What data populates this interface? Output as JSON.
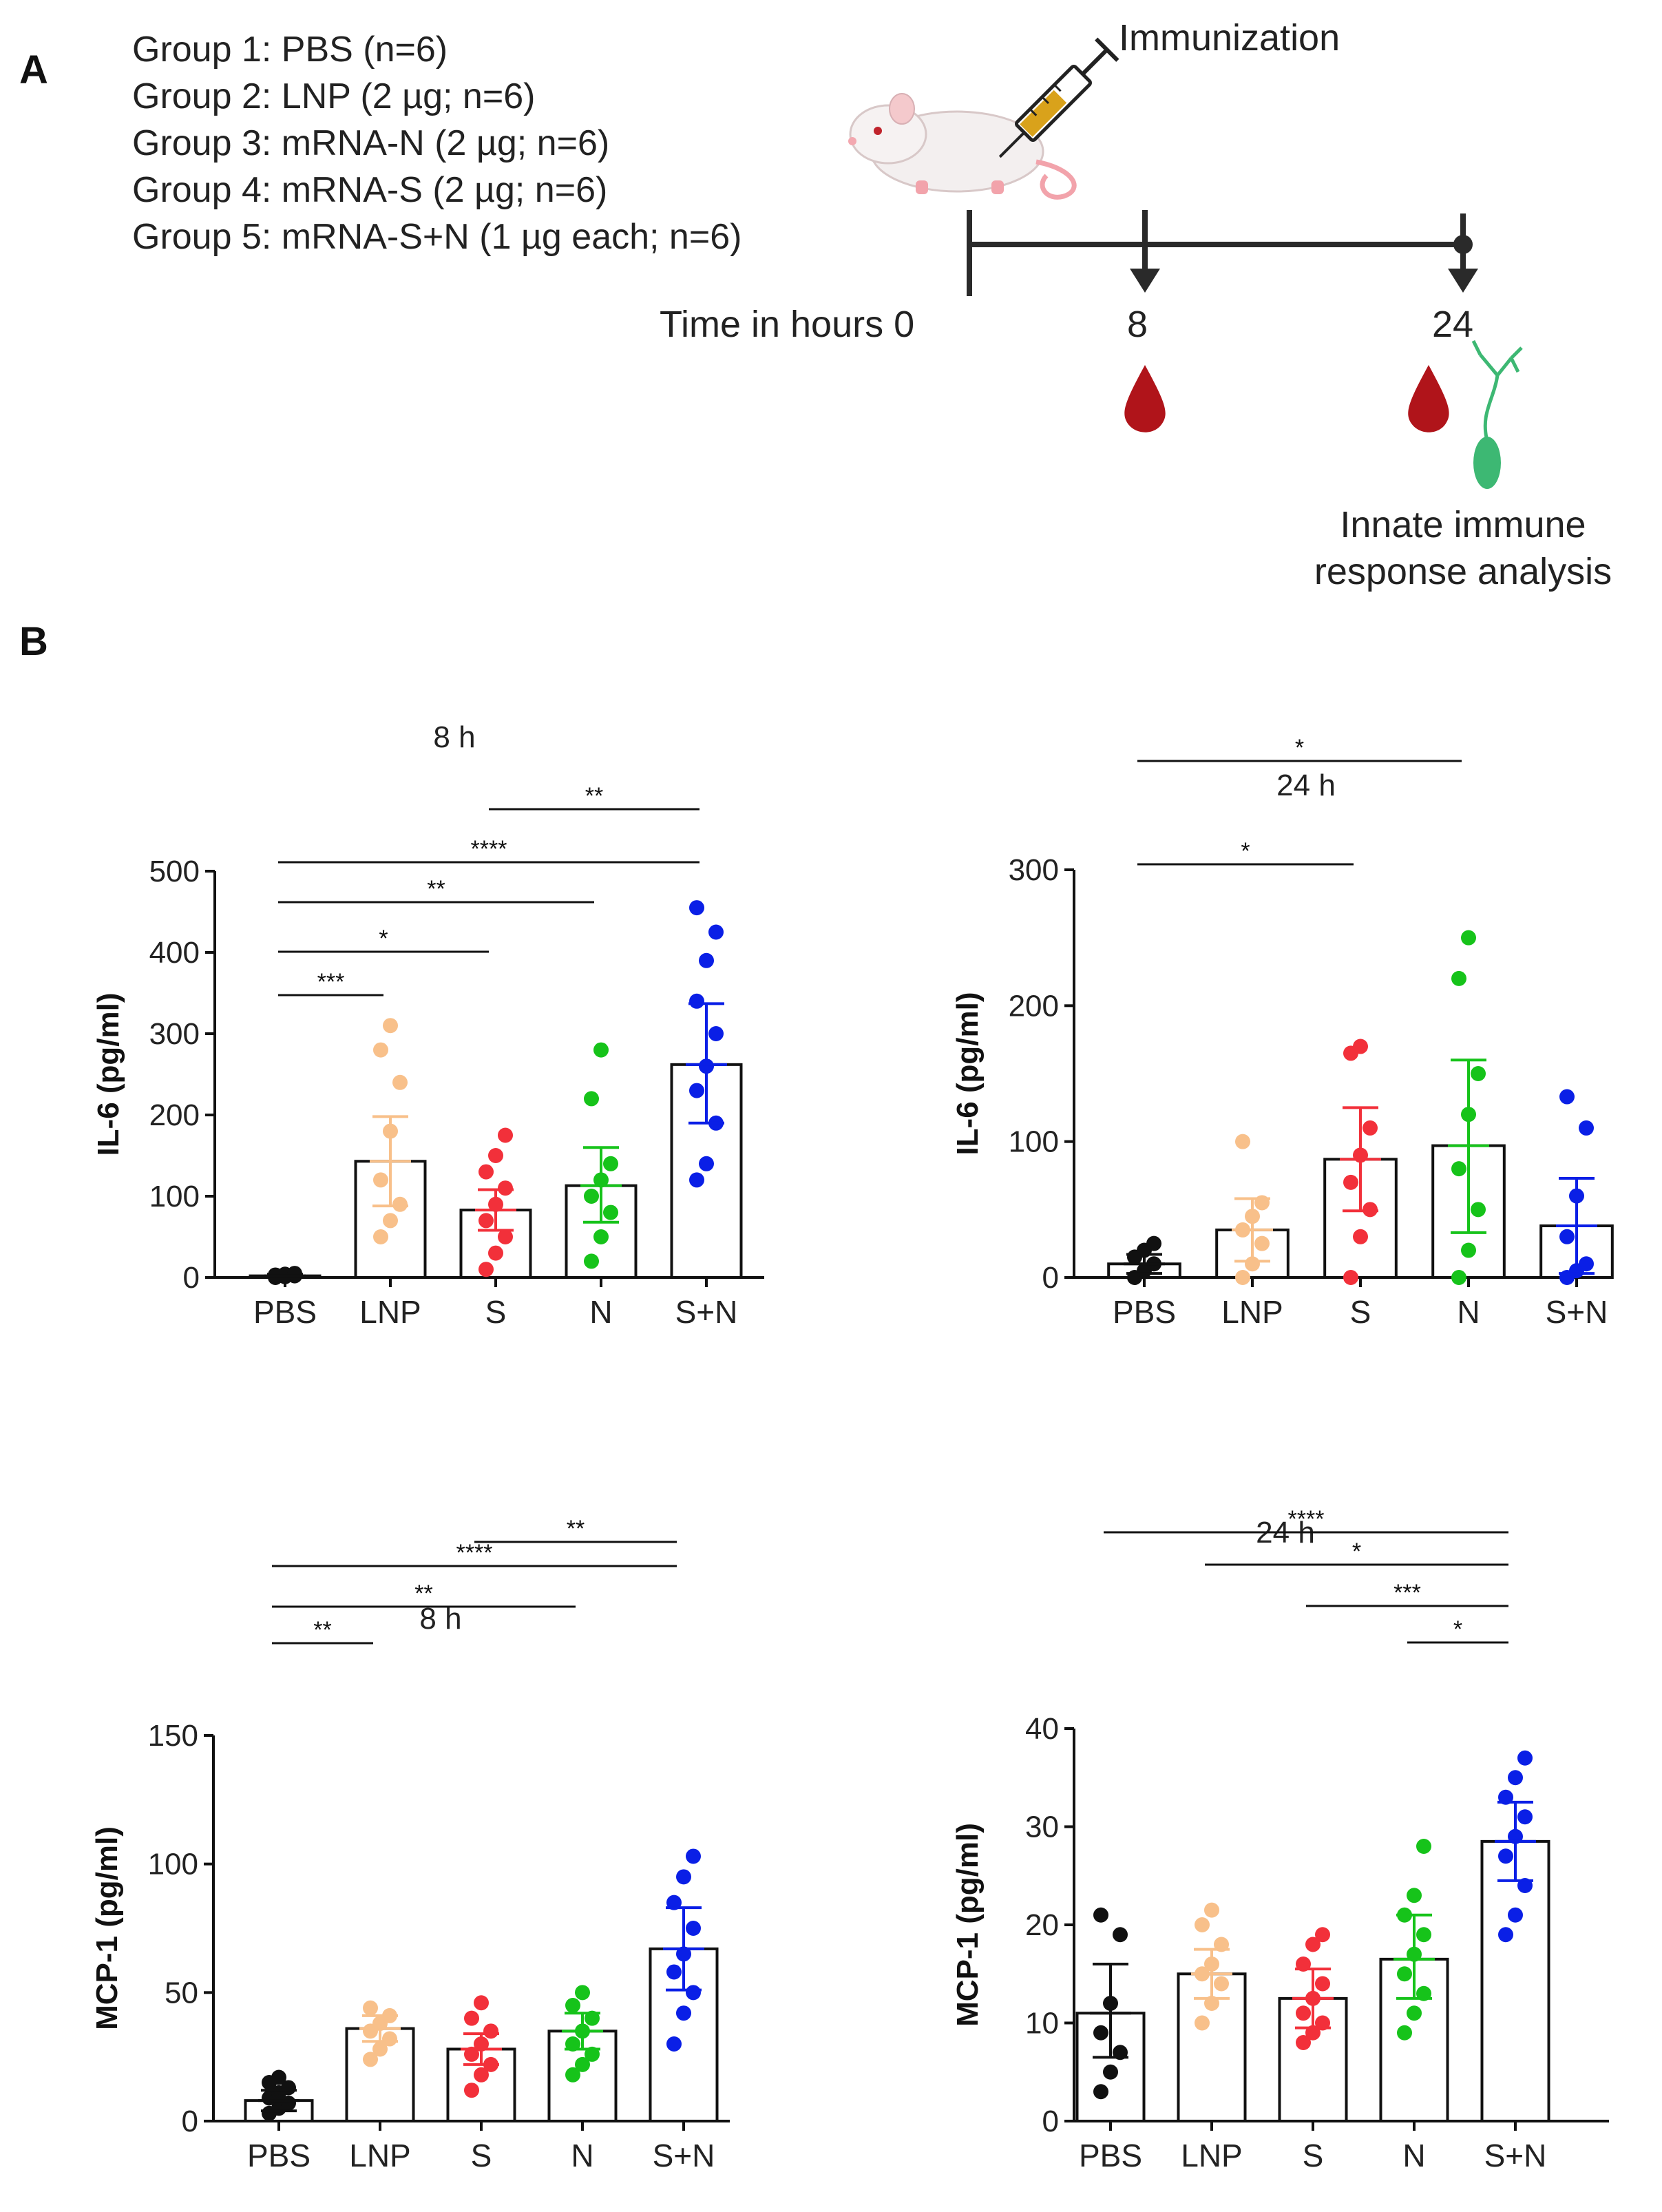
{
  "panels": {
    "a": "A",
    "b": "B"
  },
  "groups": [
    "Group 1: PBS  (n=6)",
    "Group 2: LNP  (2 µg; n=6)",
    "Group 3: mRNA-N (2 µg; n=6)",
    "Group 4: mRNA-S  (2 µg; n=6)",
    "Group 5: mRNA-S+N (1 µg each; n=6)"
  ],
  "timeline": {
    "immunization": "Immunization",
    "time_label": "Time in hours 0",
    "t8": "8",
    "t24": "24",
    "analysis_line1": "Innate immune",
    "analysis_line2": "response analysis"
  },
  "colors": {
    "PBS": "#111111",
    "LNP": "#f8c08a",
    "S": "#f2303a",
    "N": "#16c31a",
    "S+N": "#0a1fe6",
    "blood": "#b0141a",
    "neuron": "#3db873",
    "syringe": "#d9a21b"
  },
  "chart_data": [
    {
      "id": "il6_8h",
      "type": "bar",
      "title": "8 h",
      "ylabel": "IL-6 (pg/ml)",
      "categories": [
        "PBS",
        "LNP",
        "S",
        "N",
        "S+N"
      ],
      "ylim": [
        0,
        500
      ],
      "yticks": [
        0,
        100,
        200,
        300,
        400,
        500
      ],
      "means": [
        2,
        143,
        83,
        113,
        262
      ],
      "err_high": [
        4,
        198,
        108,
        160,
        337
      ],
      "err_low": [
        0,
        88,
        58,
        68,
        190
      ],
      "points": [
        [
          0,
          1,
          2,
          3,
          4,
          5
        ],
        [
          50,
          70,
          90,
          120,
          180,
          240,
          280,
          310
        ],
        [
          10,
          30,
          50,
          70,
          90,
          110,
          130,
          150,
          175
        ],
        [
          20,
          50,
          80,
          100,
          120,
          140,
          220,
          280
        ],
        [
          120,
          140,
          190,
          230,
          260,
          300,
          340,
          390,
          425,
          455
        ]
      ],
      "significance": [
        {
          "from": 0,
          "to": 1,
          "label": "***"
        },
        {
          "from": 0,
          "to": 2,
          "label": "*"
        },
        {
          "from": 0,
          "to": 3,
          "label": "**"
        },
        {
          "from": 0,
          "to": 4,
          "label": "****"
        },
        {
          "from": 2,
          "to": 4,
          "label": "**"
        }
      ]
    },
    {
      "id": "il6_24h",
      "type": "bar",
      "title": "24 h",
      "ylabel": "IL-6 (pg/ml)",
      "categories": [
        "PBS",
        "LNP",
        "S",
        "N",
        "S+N"
      ],
      "ylim": [
        0,
        300
      ],
      "yticks": [
        0,
        100,
        200,
        300
      ],
      "means": [
        10,
        35,
        87,
        97,
        38
      ],
      "err_high": [
        17,
        58,
        125,
        160,
        73
      ],
      "err_low": [
        3,
        12,
        49,
        33,
        3
      ],
      "points": [
        [
          0,
          5,
          10,
          15,
          20,
          25
        ],
        [
          0,
          10,
          25,
          35,
          45,
          55,
          100
        ],
        [
          0,
          30,
          50,
          70,
          90,
          110,
          165,
          170
        ],
        [
          0,
          20,
          50,
          80,
          120,
          150,
          220,
          250
        ],
        [
          0,
          5,
          10,
          30,
          60,
          110,
          133
        ]
      ],
      "significance": [
        {
          "from": 0,
          "to": 2,
          "label": "*"
        },
        {
          "from": 0,
          "to": 3,
          "label": "*"
        }
      ]
    },
    {
      "id": "mcp1_8h",
      "type": "bar",
      "title": "8 h",
      "ylabel": "MCP-1 (pg/ml)",
      "categories": [
        "PBS",
        "LNP",
        "S",
        "N",
        "S+N"
      ],
      "ylim": [
        0,
        150
      ],
      "yticks": [
        0,
        50,
        100,
        150
      ],
      "means": [
        8,
        36,
        28,
        35,
        67
      ],
      "err_high": [
        12,
        41,
        34,
        42,
        83
      ],
      "err_low": [
        4,
        31,
        22,
        28,
        51
      ],
      "points": [
        [
          3,
          5,
          7,
          9,
          11,
          13,
          15,
          17
        ],
        [
          24,
          28,
          32,
          35,
          38,
          41,
          44
        ],
        [
          12,
          18,
          22,
          26,
          30,
          35,
          40,
          46
        ],
        [
          18,
          22,
          26,
          30,
          35,
          40,
          45,
          50
        ],
        [
          30,
          42,
          50,
          58,
          65,
          75,
          85,
          95,
          103
        ]
      ],
      "significance": [
        {
          "from": 0,
          "to": 1,
          "label": "**"
        },
        {
          "from": 0,
          "to": 3,
          "label": "**"
        },
        {
          "from": 0,
          "to": 4,
          "label": "****"
        },
        {
          "from": 2,
          "to": 4,
          "label": "**"
        }
      ]
    },
    {
      "id": "mcp1_24h",
      "type": "bar",
      "title": "24 h",
      "ylabel": "MCP-1 (pg/ml)",
      "categories": [
        "PBS",
        "LNP",
        "S",
        "N",
        "S+N"
      ],
      "ylim": [
        0,
        40
      ],
      "yticks": [
        0,
        10,
        20,
        30,
        40
      ],
      "means": [
        11,
        15,
        12.5,
        16.5,
        28.5
      ],
      "err_high": [
        16,
        17.5,
        15.5,
        21,
        32.5
      ],
      "err_low": [
        6.5,
        12.5,
        9.5,
        12.5,
        24.5
      ],
      "points": [
        [
          3,
          5,
          7,
          9,
          12,
          19,
          21
        ],
        [
          10,
          12,
          14,
          15,
          16,
          18,
          20,
          21.5
        ],
        [
          8,
          9,
          10,
          11,
          12.5,
          14,
          16,
          18,
          19
        ],
        [
          9,
          11,
          13,
          15,
          17,
          19,
          21,
          23,
          28
        ],
        [
          19,
          21,
          24,
          27,
          29,
          31,
          33,
          35,
          37
        ]
      ],
      "significance": [
        {
          "from": 0,
          "to": 4,
          "label": "****"
        },
        {
          "from": 1,
          "to": 4,
          "label": "*"
        },
        {
          "from": 2,
          "to": 4,
          "label": "***"
        },
        {
          "from": 3,
          "to": 4,
          "label": "*"
        }
      ]
    }
  ]
}
